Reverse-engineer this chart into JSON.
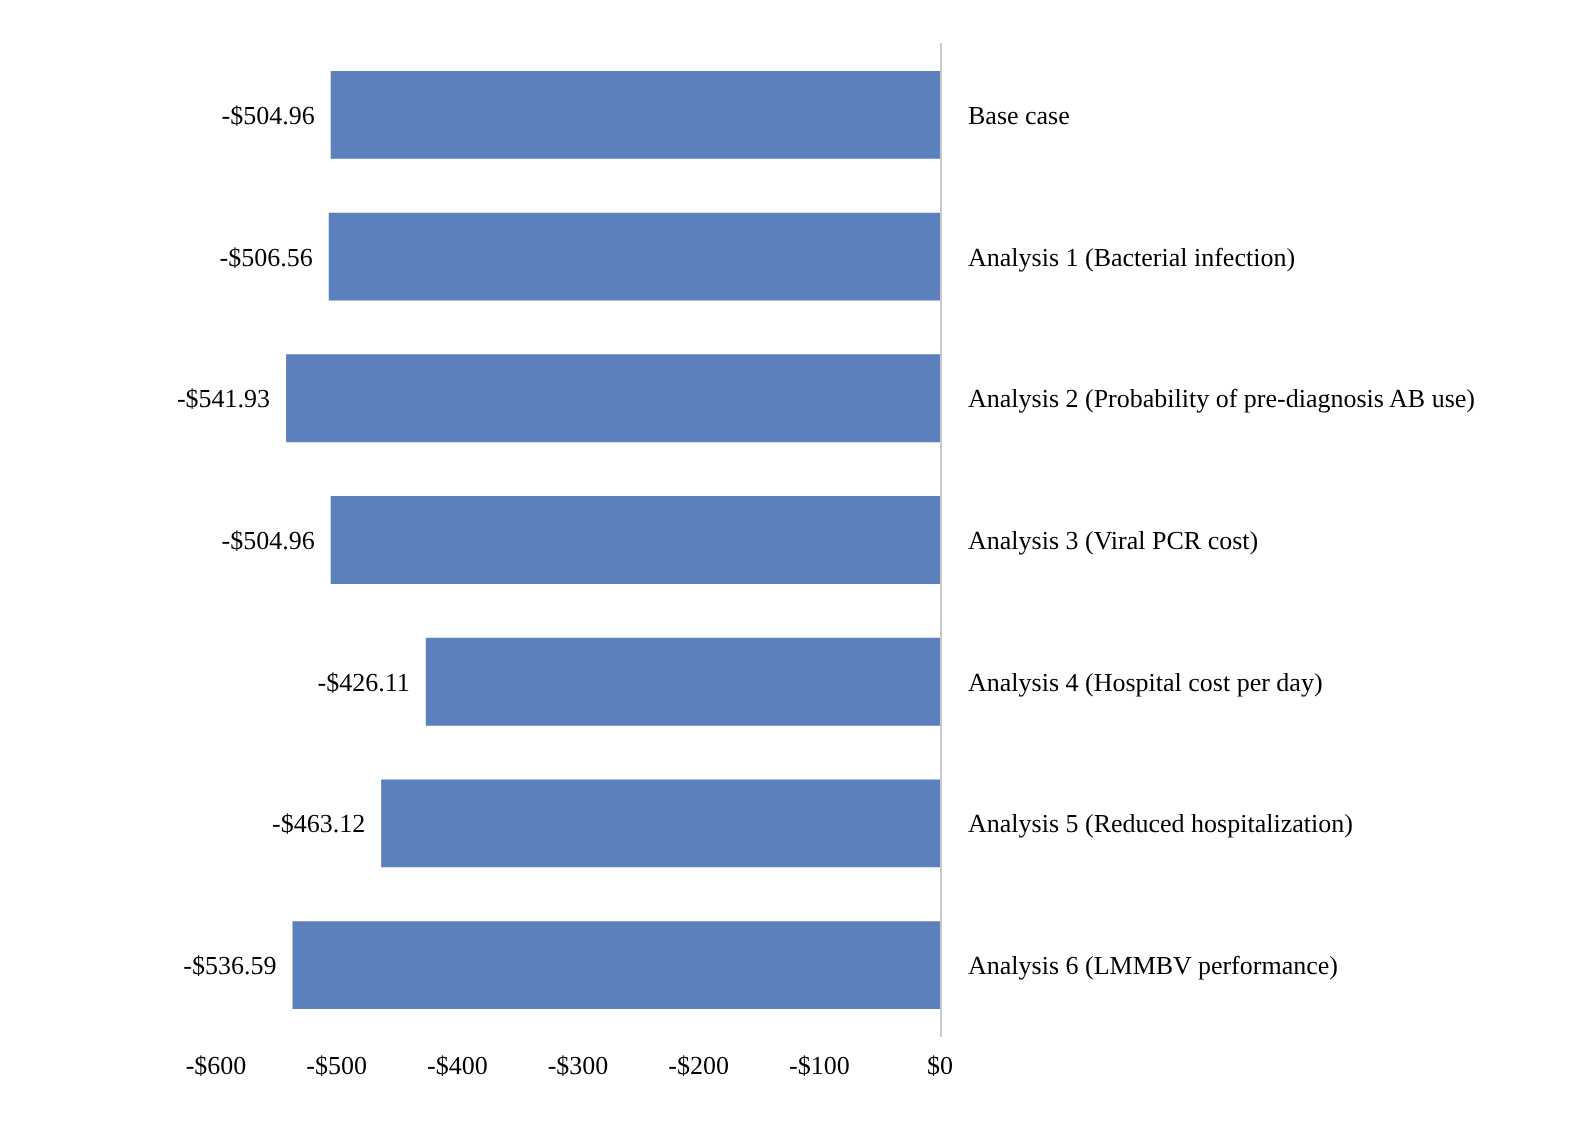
{
  "chart_data": {
    "type": "bar",
    "orientation": "horizontal",
    "categories": [
      "Base case",
      "Analysis 1 (Bacterial infection)",
      "Analysis 2 (Probability of pre-diagnosis AB use)",
      "Analysis 3 (Viral PCR cost)",
      "Analysis 4 (Hospital cost per day)",
      "Analysis 5 (Reduced hospitalization)",
      "Analysis 6 (LMMBV performance)"
    ],
    "values": [
      -504.96,
      -506.56,
      -541.93,
      -504.96,
      -426.11,
      -463.12,
      -536.59
    ],
    "value_labels": [
      "-$504.96",
      "-$506.56",
      "-$541.93",
      "-$504.96",
      "-$426.11",
      "-$463.12",
      "-$536.59"
    ],
    "color": "#5b80bb",
    "xlim": [
      -600,
      0
    ],
    "xticks": [
      {
        "value": -600,
        "label": "-$600"
      },
      {
        "value": -500,
        "label": "-$500"
      },
      {
        "value": -400,
        "label": "-$400"
      },
      {
        "value": -300,
        "label": "-$300"
      },
      {
        "value": -200,
        "label": "-$200"
      },
      {
        "value": -100,
        "label": "-$100"
      },
      {
        "value": 0,
        "label": "$0"
      }
    ],
    "grid": false
  }
}
